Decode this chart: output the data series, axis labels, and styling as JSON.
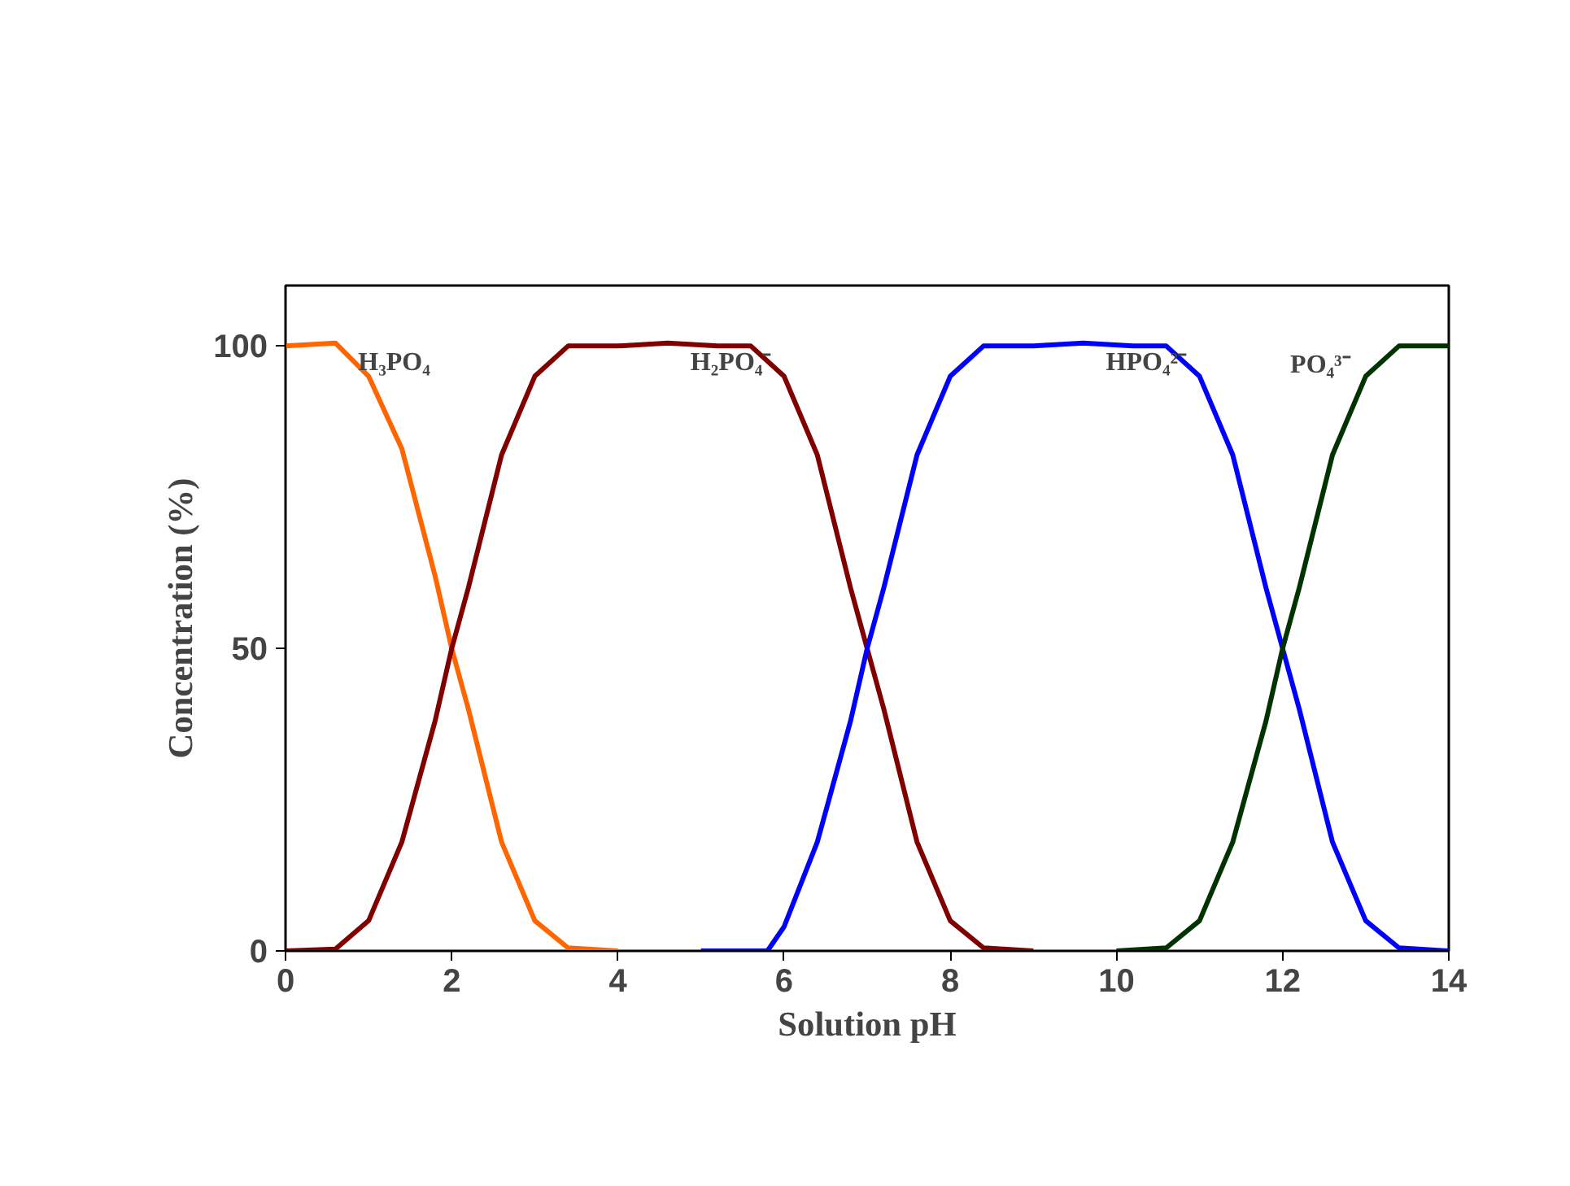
{
  "chart_data": {
    "type": "line",
    "xlabel": "Solution pH",
    "ylabel": "Concentration (%)",
    "xlim": [
      0,
      14
    ],
    "xticks": [
      0,
      2,
      4,
      6,
      8,
      10,
      12,
      14
    ],
    "ylim": [
      0,
      110
    ],
    "yticks": [
      0,
      50,
      100
    ],
    "grid": false,
    "marker": "none",
    "line_style": "solid",
    "series": [
      {
        "name": "H₃PO₄",
        "color": "#ff6600",
        "x": [
          0,
          0.6,
          1,
          1.4,
          1.8,
          2,
          2.2,
          2.6,
          3,
          3.4,
          4
        ],
        "values": [
          100,
          100.5,
          95,
          83,
          62,
          50,
          40,
          18,
          5,
          0.5,
          0
        ]
      },
      {
        "name": "H₂PO₄⁻",
        "color": "#800000",
        "x": [
          0,
          0.6,
          1,
          1.4,
          1.8,
          2,
          2.2,
          2.6,
          3,
          3.4,
          4,
          4.6,
          5.2,
          5.6,
          6,
          6.4,
          6.8,
          7,
          7.2,
          7.6,
          8,
          8.4,
          9
        ],
        "values": [
          0,
          0.3,
          5,
          18,
          38,
          50,
          60,
          82,
          95,
          100,
          100,
          100.5,
          100,
          100,
          95,
          82,
          60,
          50,
          40,
          18,
          5,
          0.5,
          0
        ]
      },
      {
        "name": "HPO₄²⁻",
        "color": "#0000ff",
        "x": [
          5,
          5.8,
          6,
          6.4,
          6.8,
          7,
          7.2,
          7.6,
          8,
          8.4,
          9,
          9.6,
          10.2,
          10.6,
          11,
          11.4,
          11.8,
          12,
          12.2,
          12.6,
          13,
          13.4,
          14
        ],
        "values": [
          0,
          0,
          4,
          18,
          38,
          50,
          60,
          82,
          95,
          100,
          100,
          100.5,
          100,
          100,
          95,
          82,
          60,
          50,
          40,
          18,
          5,
          0.5,
          0
        ]
      },
      {
        "name": "PO₄³⁻",
        "color": "#003300",
        "x": [
          10,
          10.6,
          11,
          11.4,
          11.8,
          12,
          12.2,
          12.6,
          13,
          13.4,
          14
        ],
        "values": [
          0,
          0.5,
          5,
          18,
          38,
          50,
          60,
          82,
          95,
          100,
          100
        ]
      }
    ]
  }
}
